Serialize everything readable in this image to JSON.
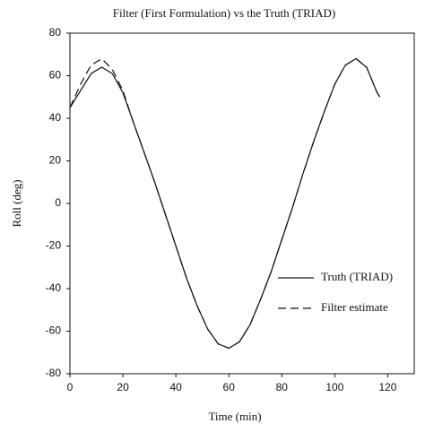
{
  "chart_data": {
    "type": "line",
    "title": "Filter  (First Formulation) vs  the Truth (TRIAD)",
    "x_label": "Time  (min)",
    "y_label": "Roll (deg)",
    "x": [
      0,
      4,
      8,
      12,
      16,
      20,
      24,
      28,
      32,
      36,
      40,
      44,
      48,
      52,
      56,
      60,
      64,
      68,
      72,
      76,
      80,
      84,
      88,
      92,
      96,
      100,
      104,
      108,
      112,
      116,
      117
    ],
    "series": [
      {
        "name": "Truth (TRIAD)",
        "color": "#111111",
        "dashed": false,
        "values": [
          45,
          53,
          61,
          64,
          61,
          52,
          38,
          24,
          10,
          -5,
          -20,
          -35,
          -48,
          -59,
          -66,
          -68,
          -65,
          -57,
          -45,
          -32,
          -17,
          -2,
          14,
          29,
          43,
          56,
          65,
          68,
          64,
          52,
          50
        ]
      },
      {
        "name": "Filter estimate",
        "color": "#111111",
        "dashed": true,
        "values": [
          45,
          56,
          65,
          68,
          63,
          53,
          38,
          24,
          10,
          -5,
          -20,
          -35,
          -48,
          -59,
          -66,
          -68,
          -65,
          -57,
          -45,
          -32,
          -17,
          -2,
          14,
          29,
          43,
          56,
          65,
          68,
          64,
          52,
          50
        ]
      }
    ],
    "xlim": [
      0,
      130
    ],
    "xticks": [
      0,
      20,
      40,
      60,
      80,
      100,
      120
    ],
    "ylim": [
      -80,
      80
    ],
    "yticks": [
      -80,
      -60,
      -40,
      -20,
      0,
      20,
      40,
      60,
      80
    ],
    "grid": false,
    "legend": "lower right"
  }
}
